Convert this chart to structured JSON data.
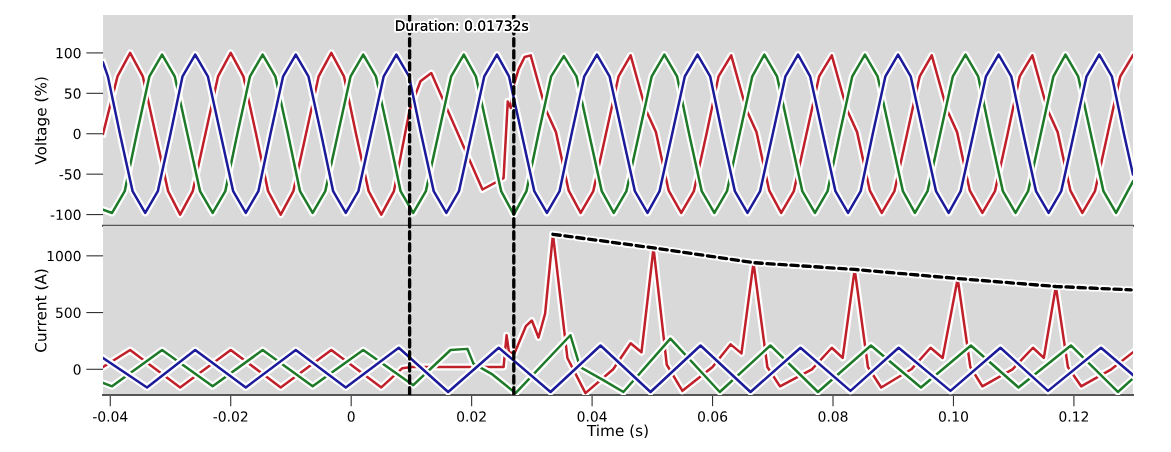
{
  "chart_data": [
    {
      "type": "line",
      "ylabel": "Voltage (%)",
      "annotations": [
        "Duration: 0.01732s"
      ],
      "xlim": [
        -0.0412,
        0.1298
      ],
      "ylim": [
        -114,
        147
      ],
      "yticks": [
        -100,
        -50,
        0,
        50,
        100
      ],
      "tick_labels": "y",
      "grid": false,
      "marker": "none",
      "ref_lines": [
        {
          "axis": "x",
          "value": 0.0097,
          "color": "#000000",
          "line_style": "dashed"
        },
        {
          "axis": "x",
          "value": 0.027,
          "color": "#000000",
          "line_style": "dashed"
        }
      ],
      "series": [
        {
          "color": "#c0202a",
          "x": [
            -0.0412,
            -0.0388,
            -0.0367,
            -0.0346,
            -0.0325,
            -0.0304,
            -0.0284,
            -0.0263,
            -0.0242,
            -0.0221,
            -0.02,
            -0.0179,
            -0.0158,
            -0.0138,
            -0.0117,
            -0.0096,
            -0.0075,
            -0.0054,
            -0.0033,
            -0.0012,
            0.0008,
            0.0029,
            0.005,
            0.0071,
            0.0097,
            0.0115,
            0.0133,
            0.0218,
            0.0253,
            0.026,
            0.0265,
            0.027,
            0.0278,
            0.0288,
            0.0298,
            0.0323,
            0.034,
            0.0361,
            0.0381,
            0.0402,
            0.0423,
            0.0444,
            0.0464,
            0.0489,
            0.0506,
            0.0527,
            0.0548,
            0.0569,
            0.059,
            0.061,
            0.0631,
            0.0656,
            0.0673,
            0.0694,
            0.0714,
            0.0735,
            0.0756,
            0.0777,
            0.0798,
            0.0823,
            0.084,
            0.0861,
            0.0881,
            0.0902,
            0.0923,
            0.0944,
            0.0964,
            0.0989,
            0.1006,
            0.1027,
            0.1048,
            0.1069,
            0.109,
            0.111,
            0.1131,
            0.1156,
            0.1173,
            0.1194,
            0.1214,
            0.1235,
            0.1256,
            0.1277,
            0.1298
          ],
          "values": [
            0,
            71,
            100,
            71,
            0,
            -71,
            -100,
            -71,
            0,
            71,
            100,
            71,
            0,
            -71,
            -100,
            -71,
            0,
            71,
            100,
            71,
            0,
            -71,
            -100,
            -71,
            29,
            65,
            75,
            -69,
            -55,
            40,
            32,
            60,
            80,
            95,
            97,
            30,
            2,
            -70,
            -98,
            -71,
            0,
            71,
            97,
            30,
            2,
            -70,
            -98,
            -71,
            0,
            71,
            97,
            30,
            2,
            -70,
            -98,
            -71,
            0,
            71,
            97,
            30,
            2,
            -70,
            -98,
            -71,
            0,
            71,
            97,
            30,
            2,
            -70,
            -98,
            -71,
            0,
            71,
            97,
            30,
            2,
            -70,
            -98,
            -71,
            0,
            71,
            97
          ]
        },
        {
          "color": "#1e7a28",
          "x": [
            -0.0412,
            -0.0397,
            -0.0376,
            -0.0356,
            -0.0335,
            -0.0314,
            -0.0293,
            -0.0272,
            -0.0251,
            -0.023,
            -0.0209,
            -0.0189,
            -0.0168,
            -0.0147,
            -0.0126,
            -0.0105,
            -0.0085,
            -0.0064,
            -0.0043,
            -0.0022,
            -0.0001,
            0.002,
            0.0041,
            0.0062,
            0.0082,
            0.0103,
            0.0124,
            0.0145,
            0.0166,
            0.0187,
            0.0207,
            0.0228,
            0.0249,
            0.027,
            0.0291,
            0.0311,
            0.0332,
            0.0353,
            0.0374,
            0.0395,
            0.0416,
            0.0436,
            0.0457,
            0.0478,
            0.0499,
            0.052,
            0.0541,
            0.0561,
            0.0582,
            0.0603,
            0.0624,
            0.0645,
            0.0666,
            0.0686,
            0.0707,
            0.0728,
            0.0749,
            0.077,
            0.0791,
            0.0811,
            0.0832,
            0.0853,
            0.0874,
            0.0895,
            0.0916,
            0.0936,
            0.0957,
            0.0978,
            0.0999,
            0.102,
            0.1041,
            0.1061,
            0.1082,
            0.1103,
            0.1124,
            0.1145,
            0.1166,
            0.1186,
            0.1207,
            0.1228,
            0.1249,
            0.127,
            0.1298
          ],
          "values": [
            -94,
            -98,
            -71,
            0,
            71,
            98,
            71,
            0,
            -71,
            -98,
            -71,
            0,
            71,
            98,
            71,
            0,
            -71,
            -98,
            -71,
            0,
            71,
            98,
            71,
            0,
            -71,
            -98,
            -71,
            0,
            71,
            98,
            71,
            0,
            -71,
            -100,
            -71,
            0,
            71,
            96,
            71,
            0,
            -71,
            -98,
            -71,
            0,
            71,
            98,
            71,
            0,
            -71,
            -98,
            -71,
            0,
            71,
            98,
            71,
            0,
            -71,
            -98,
            -71,
            0,
            71,
            98,
            71,
            0,
            -71,
            -98,
            -71,
            0,
            71,
            98,
            71,
            0,
            -71,
            -98,
            -71,
            0,
            71,
            98,
            71,
            0,
            -71,
            -98,
            -59
          ]
        },
        {
          "color": "#1c1c9a",
          "x": [
            -0.0412,
            -0.0404,
            -0.0384,
            -0.0363,
            -0.0342,
            -0.0321,
            -0.03,
            -0.028,
            -0.0259,
            -0.0238,
            -0.0217,
            -0.0196,
            -0.0175,
            -0.0154,
            -0.0134,
            -0.0113,
            -0.0092,
            -0.0071,
            -0.005,
            -0.003,
            -0.0009,
            0.0012,
            0.0033,
            0.0054,
            0.0075,
            0.0096,
            0.0116,
            0.0137,
            0.0158,
            0.0179,
            0.02,
            0.0221,
            0.0242,
            0.0262,
            0.0283,
            0.0304,
            0.0325,
            0.0346,
            0.0366,
            0.0387,
            0.0408,
            0.0429,
            0.045,
            0.0471,
            0.0492,
            0.0512,
            0.0533,
            0.0554,
            0.0575,
            0.0596,
            0.0616,
            0.0637,
            0.0658,
            0.0679,
            0.07,
            0.0721,
            0.0742,
            0.0762,
            0.0783,
            0.0804,
            0.0825,
            0.0846,
            0.0866,
            0.0887,
            0.0908,
            0.0929,
            0.095,
            0.0971,
            0.0992,
            0.1012,
            0.1033,
            0.1054,
            0.1075,
            0.1096,
            0.1116,
            0.1137,
            0.1158,
            0.1179,
            0.12,
            0.1221,
            0.1242,
            0.1263,
            0.1283,
            0.1298
          ],
          "values": [
            88,
            71,
            0,
            -71,
            -98,
            -71,
            0,
            71,
            98,
            71,
            0,
            -71,
            -98,
            -71,
            0,
            71,
            98,
            71,
            0,
            -71,
            -98,
            -71,
            0,
            71,
            98,
            71,
            0,
            -71,
            -98,
            -71,
            0,
            71,
            98,
            71,
            0,
            -71,
            -98,
            -71,
            0,
            71,
            98,
            71,
            0,
            -71,
            -98,
            -71,
            0,
            71,
            98,
            71,
            0,
            -71,
            -98,
            -71,
            0,
            71,
            98,
            71,
            0,
            -71,
            -98,
            -71,
            0,
            71,
            98,
            71,
            0,
            -71,
            -98,
            -71,
            0,
            71,
            98,
            71,
            0,
            -71,
            -98,
            -71,
            0,
            71,
            98,
            71,
            0,
            -50
          ]
        }
      ]
    },
    {
      "type": "line",
      "xlabel": "Time (s)",
      "ylabel": "Current (A)",
      "xlim": [
        -0.0412,
        0.1298
      ],
      "ylim": [
        -227,
        1264
      ],
      "yticks": [
        0,
        500,
        1000
      ],
      "xticks": [
        -0.04,
        -0.02,
        0,
        0.02,
        0.04,
        0.06,
        0.08,
        {
          "value": 0.1,
          "label": "0.10"
        },
        0.12
      ],
      "grid": false,
      "marker": "none",
      "ref_lines": [
        {
          "axis": "x",
          "value": 0.0097,
          "color": "#000000",
          "line_style": "dashed"
        },
        {
          "axis": "x",
          "value": 0.027,
          "color": "#000000",
          "line_style": "dashed"
        }
      ],
      "series": [
        {
          "color": "#c0202a",
          "x": [
            -0.0412,
            -0.0367,
            -0.0284,
            -0.02,
            -0.0117,
            -0.0033,
            0.005,
            0.0085,
            0.01,
            0.0253,
            0.0258,
            0.0262,
            0.0271,
            0.029,
            0.03,
            0.0311,
            0.0322,
            0.0335,
            0.0359,
            0.0389,
            0.0435,
            0.0464,
            0.0482,
            0.0502,
            0.0524,
            0.055,
            0.06,
            0.063,
            0.0648,
            0.0668,
            0.0691,
            0.0712,
            0.0765,
            0.0798,
            0.0816,
            0.0836,
            0.0858,
            0.088,
            0.093,
            0.0962,
            0.0982,
            0.1007,
            0.1028,
            0.1048,
            0.1098,
            0.1132,
            0.115,
            0.117,
            0.119,
            0.1212,
            0.1262,
            0.1298
          ],
          "values": [
            20,
            170,
            -160,
            170,
            -160,
            170,
            -160,
            10,
            20,
            20,
            300,
            150,
            140,
            380,
            430,
            280,
            490,
            1190,
            100,
            -210,
            0,
            230,
            150,
            1070,
            40,
            -190,
            20,
            220,
            140,
            940,
            20,
            -150,
            0,
            190,
            100,
            880,
            20,
            -160,
            0,
            190,
            100,
            800,
            20,
            -150,
            0,
            190,
            100,
            730,
            20,
            -150,
            0,
            150
          ]
        },
        {
          "color": "#1e7a28",
          "x": [
            -0.0412,
            -0.0397,
            -0.0314,
            -0.023,
            -0.0147,
            -0.0064,
            0.002,
            0.0103,
            0.0165,
            0.0193,
            0.0203,
            0.0233,
            0.0273,
            0.0364,
            0.038,
            0.042,
            0.0452,
            0.053,
            0.0612,
            0.0696,
            0.0775,
            0.0863,
            0.0946,
            0.1029,
            0.1108,
            0.1195,
            0.1273,
            0.1298
          ],
          "values": [
            -120,
            -150,
            170,
            -150,
            170,
            -150,
            170,
            -140,
            170,
            180,
            50,
            -40,
            -210,
            300,
            20,
            -100,
            -200,
            270,
            -200,
            210,
            -200,
            210,
            -160,
            210,
            -160,
            210,
            -200,
            -80
          ]
        },
        {
          "color": "#1c1c9a",
          "x": [
            -0.0412,
            -0.0339,
            -0.0259,
            -0.0175,
            -0.0092,
            -0.0009,
            0.0079,
            0.0161,
            0.0245,
            0.0331,
            0.0414,
            0.0497,
            0.058,
            0.0663,
            0.0746,
            0.0829,
            0.0909,
            0.0995,
            0.1078,
            0.1157,
            0.1245,
            0.1298
          ],
          "values": [
            100,
            -160,
            170,
            -160,
            170,
            -160,
            190,
            -200,
            190,
            -200,
            210,
            -200,
            210,
            -200,
            190,
            -190,
            190,
            -190,
            190,
            -190,
            190,
            -50
          ]
        },
        {
          "type": "line",
          "color": "#000000",
          "line_style": "dashed",
          "x": [
            0.0335,
            0.0502,
            0.0668,
            0.0836,
            0.1007,
            0.117,
            0.1295
          ],
          "values": [
            1190,
            1070,
            940,
            880,
            800,
            730,
            700
          ]
        }
      ]
    }
  ]
}
